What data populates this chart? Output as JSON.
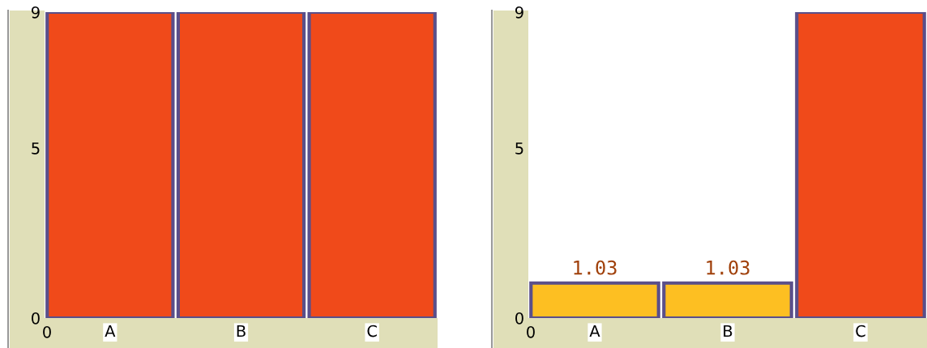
{
  "chart_data": [
    {
      "type": "bar",
      "categories": [
        "A",
        "B",
        "C"
      ],
      "values": [
        9,
        9,
        9
      ],
      "colors": [
        "#f04a1a",
        "#f04a1a",
        "#f04a1a"
      ],
      "ylim": [
        0,
        9
      ],
      "yticks": [
        0,
        5,
        9
      ],
      "grid": false,
      "annotations": [
        "0"
      ]
    },
    {
      "type": "bar",
      "categories": [
        "A",
        "B",
        "C"
      ],
      "values": [
        1.03,
        1.03,
        9
      ],
      "colors": [
        "#fdbf22",
        "#fdbf22",
        "#f04a1a"
      ],
      "value_labels": [
        "1.03",
        "1.03",
        null
      ],
      "ylim": [
        0,
        9
      ],
      "yticks": [
        0,
        5,
        9
      ],
      "grid": false,
      "annotations": [
        "0"
      ]
    }
  ]
}
